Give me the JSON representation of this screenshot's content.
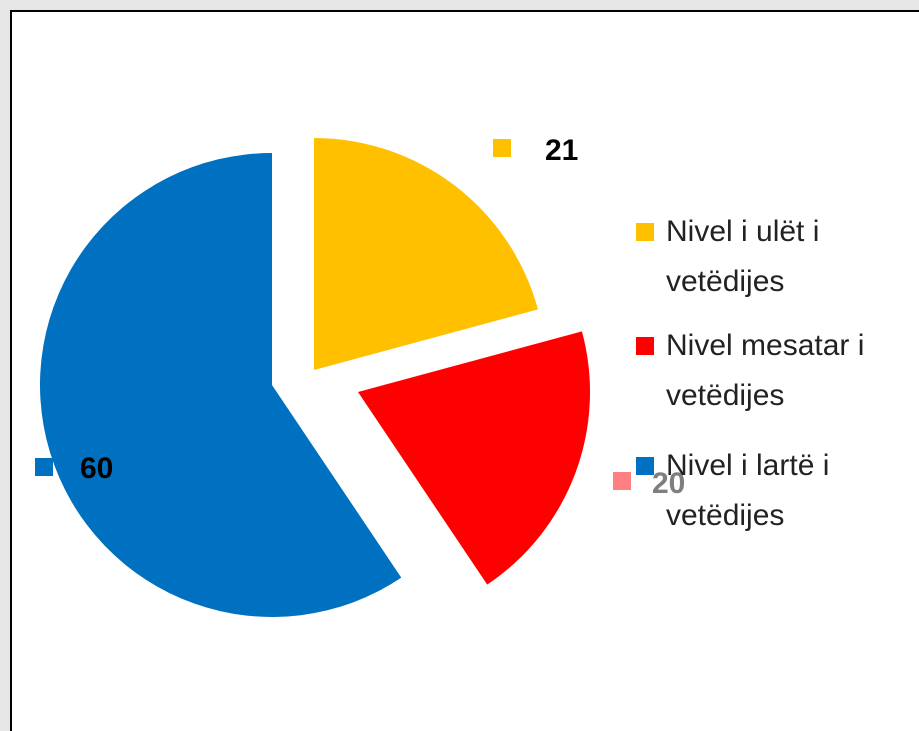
{
  "chart_data": {
    "type": "pie",
    "categories": [
      "Nivel i ulët i vetëdijes",
      "Nivel mesatar i vetëdijes",
      "Nivel i lartë i vetëdijes"
    ],
    "values": [
      21,
      20,
      60
    ],
    "colors": [
      "#ffc000",
      "#ff0000",
      "#0070c0"
    ],
    "legend": "right"
  }
}
